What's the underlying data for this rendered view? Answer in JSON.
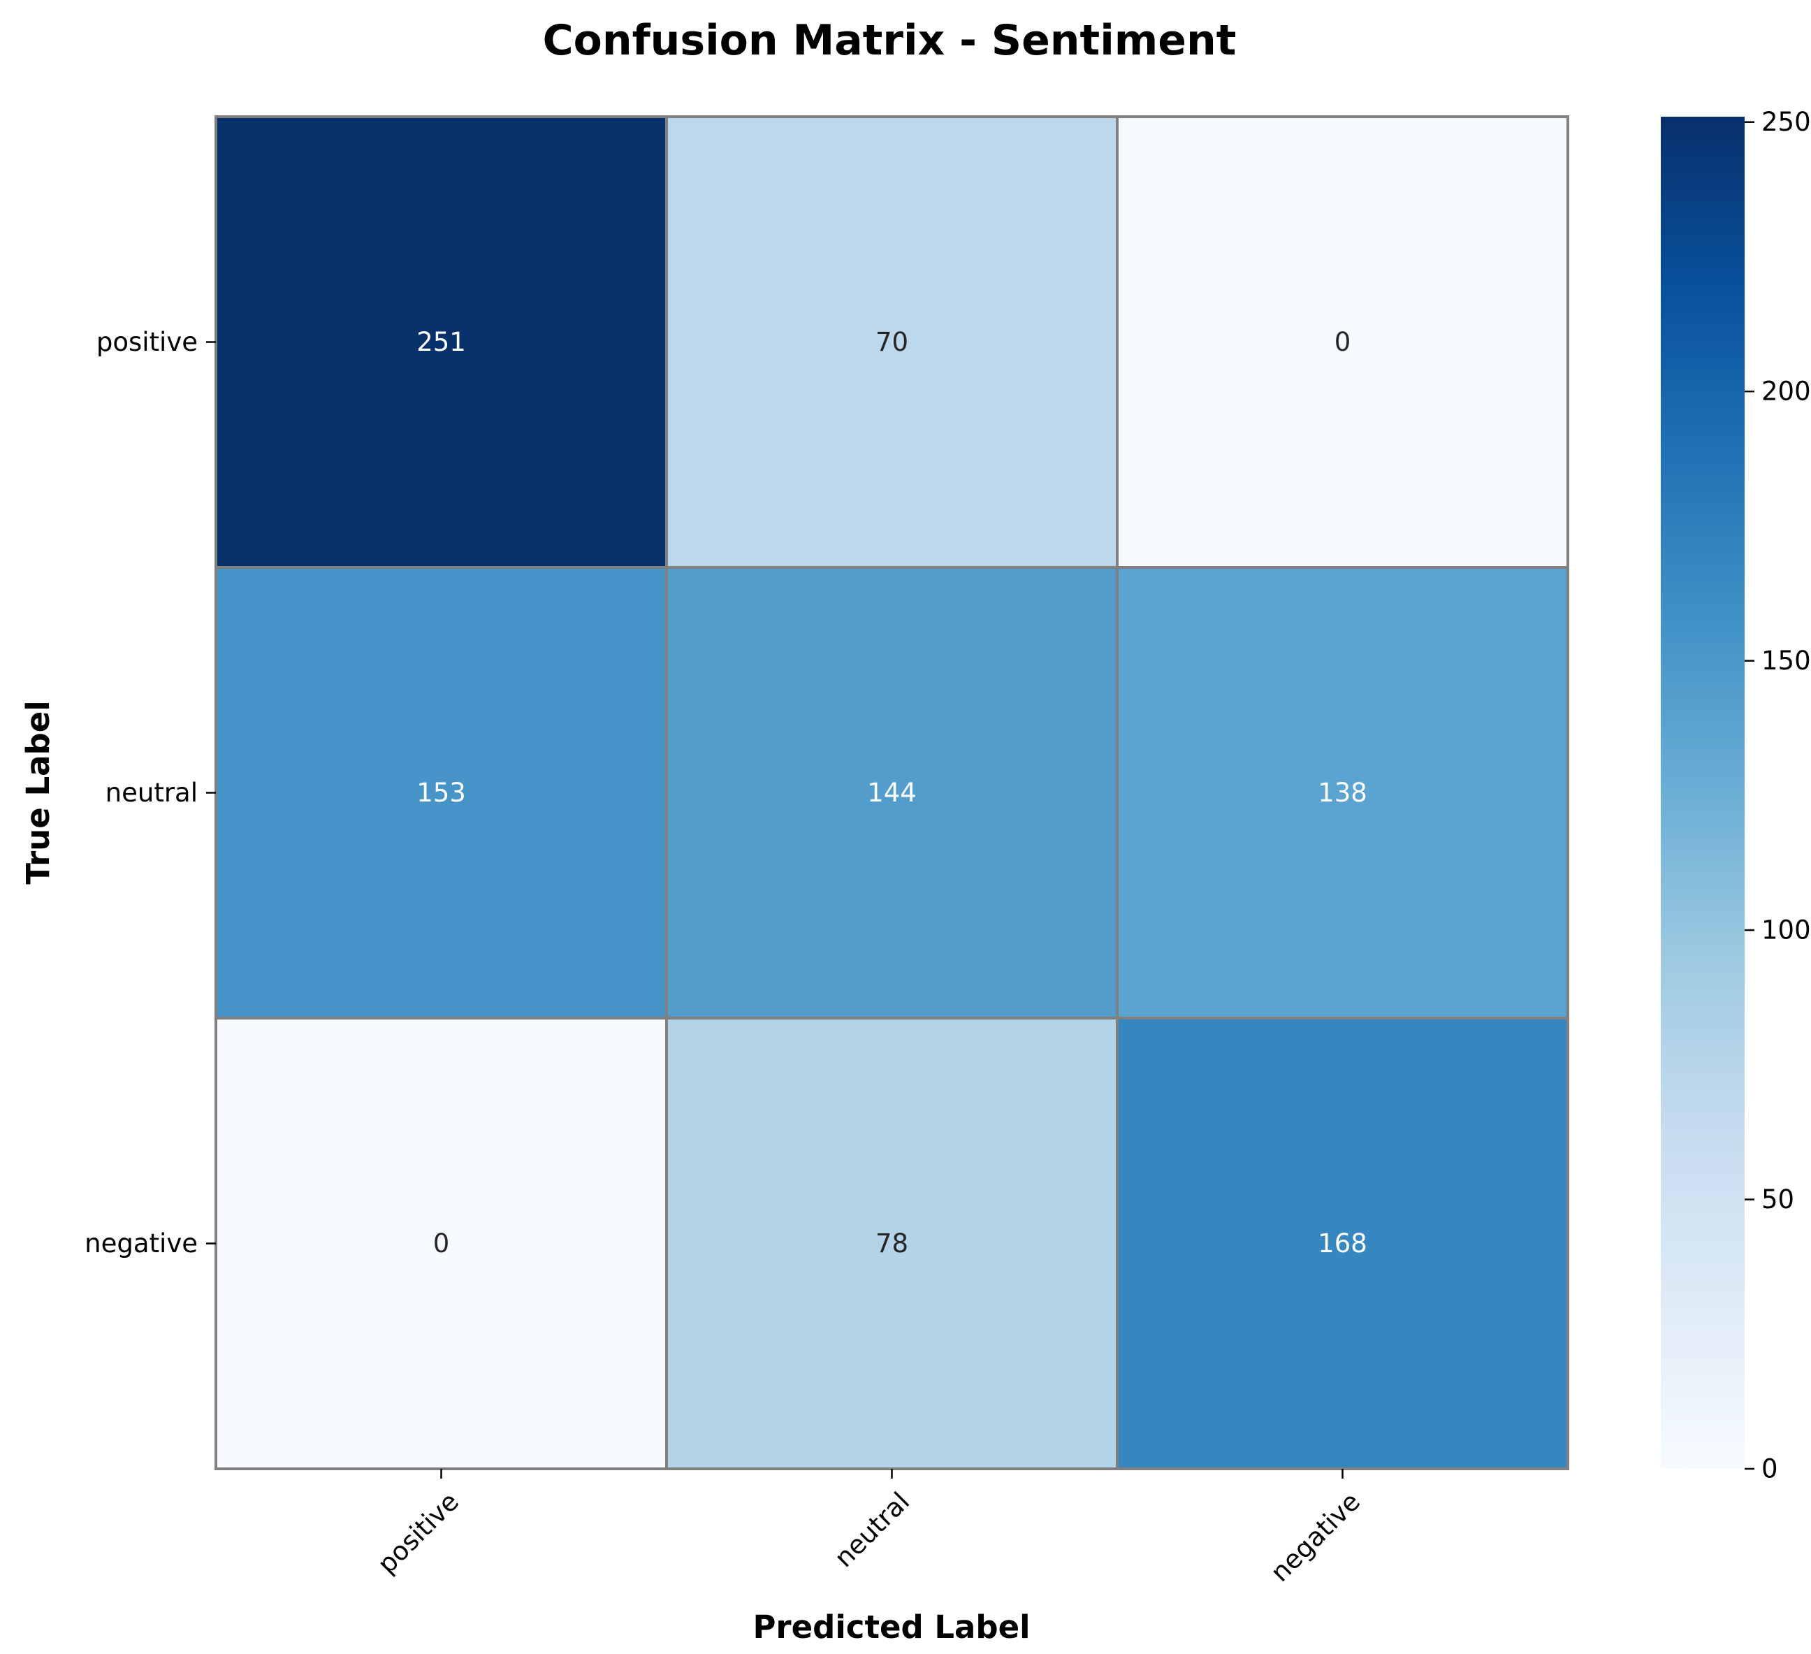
{
  "chart_data": {
    "type": "heatmap",
    "title": "Confusion Matrix - Sentiment",
    "xlabel": "Predicted Label",
    "ylabel": "True Label",
    "x_categories": [
      "positive",
      "neutral",
      "negative"
    ],
    "y_categories": [
      "positive",
      "neutral",
      "negative"
    ],
    "values": [
      [
        251,
        70,
        0
      ],
      [
        153,
        144,
        138
      ],
      [
        0,
        78,
        168
      ]
    ],
    "colorbar": {
      "range": [
        0,
        251
      ],
      "ticks": [
        0,
        50,
        100,
        150,
        200,
        250
      ],
      "colormap": "Blues"
    },
    "colors": {
      "cell_border": "#808080",
      "text_dark": "#262626",
      "text_light": "#ffffff"
    }
  }
}
